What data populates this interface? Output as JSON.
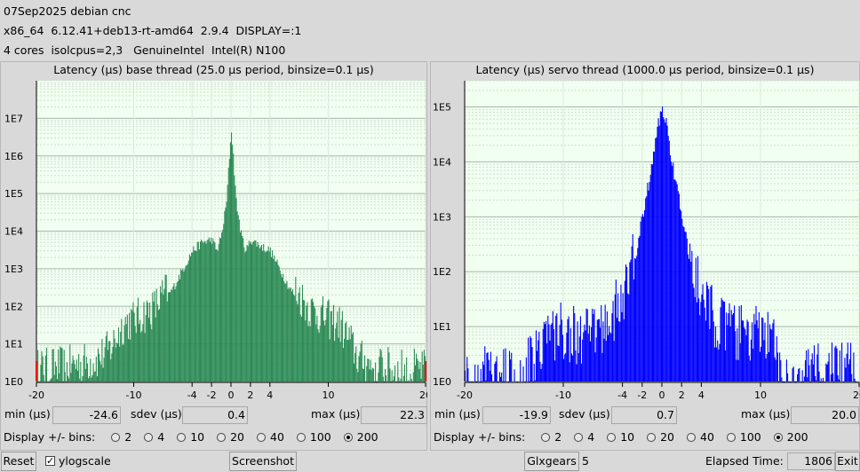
{
  "header": {
    "line1": "07Sep2025 debian cnc",
    "line2": "x86_64  6.12.41+deb13-rt-amd64  2.9.4  DISPLAY=:1",
    "line3": "4 cores  isolcpus=2,3   GenuineIntel  Intel(R) N100"
  },
  "base": {
    "title": "Latency (µs) base thread (25.0 µs period, binsize=0.1 µs)",
    "min_label": "min (µs)",
    "min": "-24.6",
    "sdev_label": "sdev (µs)",
    "sdev": "0.4",
    "max_label": "max (µs)",
    "max": "22.3",
    "bins_label": "Display +/- bins:",
    "bin_options": [
      "2",
      "4",
      "10",
      "20",
      "40",
      "100",
      "200"
    ],
    "selected_bins": "200"
  },
  "servo": {
    "title": "Latency (µs) servo thread (1000.0 µs period, binsize=0.1 µs)",
    "min_label": "min (µs)",
    "min": "-19.9",
    "sdev_label": "sdev (µs)",
    "sdev": "0.7",
    "max_label": "max (µs)",
    "max": "20.0",
    "bins_label": "Display +/- bins:",
    "bin_options": [
      "2",
      "4",
      "10",
      "20",
      "40",
      "100",
      "200"
    ],
    "selected_bins": "200"
  },
  "bottom": {
    "reset": "Reset",
    "ylogscale": "ylogscale",
    "ylogscale_checked": true,
    "screenshot": "Screenshot",
    "glxgears": "Glxgears",
    "glxgears_count": "5",
    "elapsed_label": "Elapsed Time:",
    "elapsed_value": "1806",
    "exit": "Exit"
  },
  "colors": {
    "base_fill": "#2e8b57",
    "servo_fill": "#0000ff",
    "plot_bg": "#f0fff0",
    "outlier": "#ff0000"
  },
  "chart_data": [
    {
      "type": "area",
      "title": "Latency (µs) base thread (25.0 µs period, binsize=0.1 µs)",
      "xlim": [
        -20,
        20
      ],
      "yscale": "log",
      "ylim": [
        1,
        100000000
      ],
      "xticks": [
        -20,
        -10,
        -4,
        -2,
        0,
        2,
        4,
        10,
        20
      ],
      "yticks": [
        "1E0",
        "1E1",
        "1E2",
        "1E3",
        "1E4",
        "1E5",
        "1E6",
        "1E7"
      ],
      "x": [
        -20,
        -17,
        -14,
        -12.5,
        -11,
        -10,
        -8,
        -6,
        -4,
        -3,
        -2,
        -1.5,
        -1,
        -0.5,
        -0.2,
        0,
        0.2,
        0.5,
        1,
        1.5,
        2,
        3,
        4,
        6,
        8,
        10,
        11,
        12,
        13,
        14,
        17,
        20
      ],
      "y": [
        1.5,
        1.8,
        2.5,
        5,
        25,
        30,
        60,
        300,
        3000,
        5000,
        6000,
        3000,
        8000,
        60000,
        1000000,
        5000000,
        1000000,
        60000,
        8000,
        3000,
        6000,
        4000,
        3000,
        300,
        60,
        30,
        25,
        10,
        3,
        2,
        1.5,
        1.5
      ],
      "series": [
        {
          "values": [
            1.5,
            1.8,
            2.5,
            5,
            25,
            30,
            60,
            300,
            3000,
            5000,
            6000,
            3000,
            8000,
            60000,
            1000000,
            5000000,
            1000000,
            60000,
            8000,
            3000,
            6000,
            4000,
            3000,
            300,
            60,
            30,
            25,
            10,
            3,
            2,
            1.5,
            1.5
          ]
        }
      ],
      "grid": true
    },
    {
      "type": "area",
      "title": "Latency (µs) servo thread (1000.0 µs period, binsize=0.1 µs)",
      "xlim": [
        -20,
        20
      ],
      "yscale": "log",
      "ylim": [
        1,
        300000
      ],
      "xticks": [
        -20,
        -10,
        -4,
        -2,
        0,
        2,
        4,
        10,
        20
      ],
      "yticks": [
        "1E0",
        "1E1",
        "1E2",
        "1E3",
        "1E4",
        "1E5"
      ],
      "x": [
        -20,
        -16,
        -14,
        -12,
        -10,
        -8,
        -6,
        -4,
        -3,
        -2,
        -1,
        -0.5,
        0,
        0.5,
        1,
        2,
        3,
        4,
        6,
        8,
        10,
        11,
        12,
        14,
        16,
        18,
        20
      ],
      "y": [
        1,
        1,
        1,
        5,
        6,
        4,
        7,
        20,
        100,
        1000,
        10000,
        40000,
        100000,
        40000,
        10000,
        1000,
        100,
        20,
        7,
        5,
        5,
        4,
        1,
        1,
        1,
        1,
        1
      ],
      "series": [
        {
          "values": [
            1,
            1,
            1,
            5,
            6,
            4,
            7,
            20,
            100,
            1000,
            10000,
            40000,
            100000,
            40000,
            10000,
            1000,
            100,
            20,
            7,
            5,
            5,
            4,
            1,
            1,
            1,
            1,
            1
          ]
        }
      ],
      "grid": true
    }
  ]
}
